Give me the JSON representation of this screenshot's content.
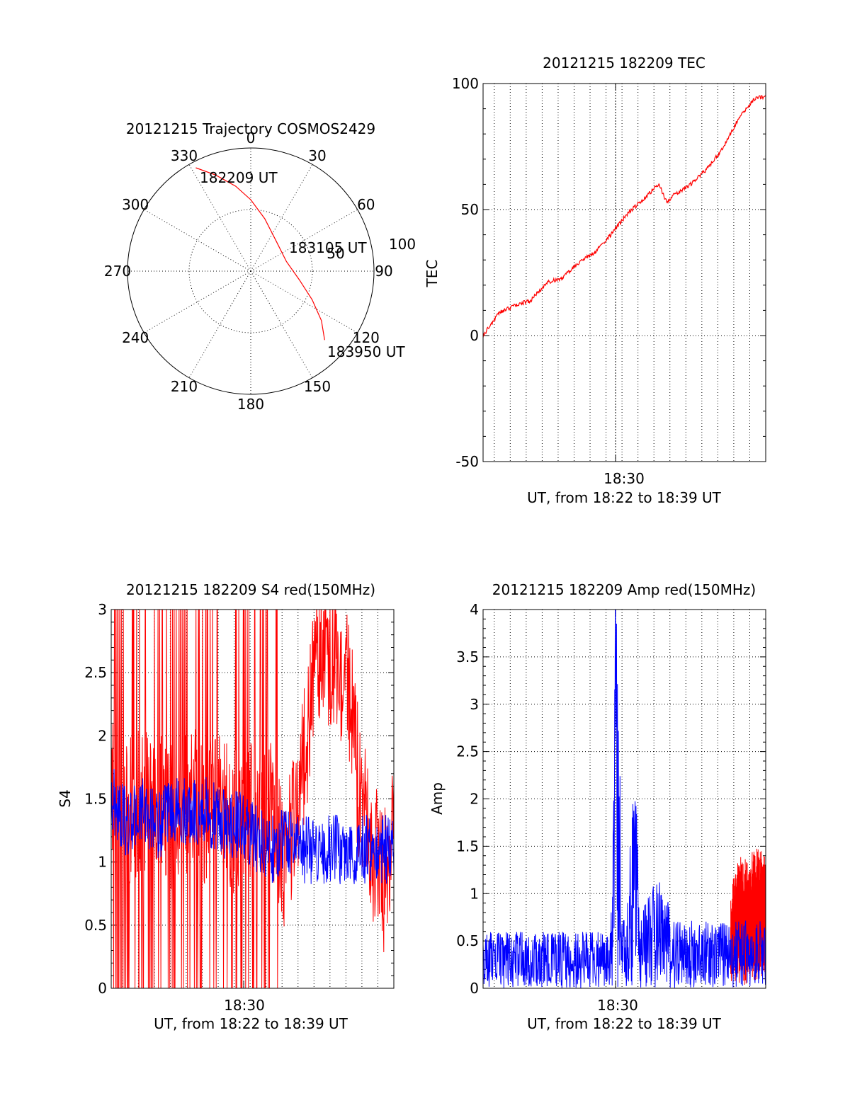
{
  "colors": {
    "red": "#ff0000",
    "blue": "#0000ff",
    "axis": "#000000"
  },
  "chart_data": [
    {
      "id": "trajectory",
      "type": "polar",
      "title": "20121215 Trajectory COSMOS2429",
      "angle_labels": [
        "0",
        "30",
        "60",
        "90",
        "120",
        "150",
        "180",
        "210",
        "240",
        "270",
        "300",
        "330"
      ],
      "radial_labels": [
        "50",
        "100"
      ],
      "rlim": [
        0,
        100
      ],
      "track": [
        {
          "az": 332,
          "r": 95
        },
        {
          "az": 340,
          "r": 83
        },
        {
          "az": 350,
          "r": 70
        },
        {
          "az": 0,
          "r": 58
        },
        {
          "az": 15,
          "r": 44
        },
        {
          "az": 40,
          "r": 32
        },
        {
          "az": 75,
          "r": 30
        },
        {
          "az": 100,
          "r": 40
        },
        {
          "az": 115,
          "r": 55
        },
        {
          "az": 125,
          "r": 70
        },
        {
          "az": 133,
          "r": 82
        }
      ],
      "annotations": [
        {
          "text": "182209 UT",
          "az": 332,
          "r": 95
        },
        {
          "text": "183105 UT",
          "az": 62,
          "r": 88
        },
        {
          "text": "183950 UT",
          "az": 120,
          "r": 110
        }
      ],
      "series_color": "#ff0000"
    },
    {
      "id": "tec",
      "type": "line",
      "title": "20121215 182209 TEC",
      "xlabel": "UT, from 18:22 to 18:39 UT",
      "ylabel": "TEC",
      "x_tick_label": "18:30",
      "xlim": [
        0,
        17.7
      ],
      "ylim": [
        -50,
        100
      ],
      "yticks": [
        -50,
        0,
        50,
        100
      ],
      "series": [
        {
          "color": "#ff0000",
          "x": [
            0,
            1,
            2,
            3,
            4,
            5,
            6,
            7,
            8,
            9,
            10,
            10.5,
            11,
            11.5,
            12,
            13,
            14,
            14.5,
            15,
            16,
            16.5,
            17,
            17.7
          ],
          "values": [
            0,
            9,
            12,
            14,
            21,
            23,
            29,
            33,
            40,
            48,
            54,
            57,
            60,
            53,
            56,
            60,
            66,
            70,
            74,
            86,
            90,
            94,
            95
          ]
        }
      ]
    },
    {
      "id": "s4",
      "type": "line",
      "title": "20121215 182209 S4 red(150MHz)",
      "xlabel": "UT, from 18:22 to 18:39 UT",
      "ylabel": "S4",
      "x_tick_label": "18:30",
      "xlim": [
        0,
        17.7
      ],
      "ylim": [
        0,
        3
      ],
      "yticks": [
        0,
        0.5,
        1,
        1.5,
        2,
        2.5,
        3
      ],
      "series": [
        {
          "color": "#ff0000",
          "x": [
            0,
            1,
            2,
            3,
            4,
            5,
            6,
            7,
            8,
            9,
            10,
            11,
            12,
            13,
            14,
            15,
            15.5,
            16,
            17,
            17.7
          ],
          "values": [
            1.6,
            1.4,
            1.5,
            1.5,
            1.3,
            1.5,
            1.4,
            1.4,
            1.3,
            1.5,
            1.4,
            1.0,
            1.8,
            2.7,
            2.6,
            2.3,
            1.6,
            1.3,
            0.8,
            1.3
          ]
        },
        {
          "color": "#0000ff",
          "x": [
            0,
            1,
            2,
            3,
            4,
            5,
            6,
            7,
            8,
            9,
            10,
            11,
            12,
            13,
            14,
            15,
            16,
            17,
            17.7
          ],
          "values": [
            1.5,
            1.3,
            1.4,
            1.3,
            1.4,
            1.4,
            1.4,
            1.3,
            1.3,
            1.2,
            1.1,
            1.2,
            1.1,
            1.1,
            1.1,
            1.1,
            1.1,
            1.1,
            1.1
          ]
        }
      ]
    },
    {
      "id": "amp",
      "type": "line",
      "title": "20121215 182209 Amp red(150MHz)",
      "xlabel": "UT, from 18:22 to 18:39 UT",
      "ylabel": "Amp",
      "x_tick_label": "18:30",
      "xlim": [
        0,
        17.7
      ],
      "ylim": [
        0,
        4
      ],
      "yticks": [
        0,
        0.5,
        1,
        1.5,
        2,
        2.5,
        3,
        3.5,
        4
      ],
      "series": [
        {
          "color": "#ff0000",
          "x": [
            15.5,
            16,
            16.5,
            17,
            17.7
          ],
          "values": [
            0.6,
            1.0,
            0.9,
            1.0,
            1.0
          ]
        },
        {
          "color": "#0000ff",
          "x": [
            0,
            1,
            2,
            3,
            4,
            5,
            6,
            7,
            8,
            8.3,
            8.5,
            8.7,
            9,
            9.5,
            9.8,
            10,
            11,
            12,
            13,
            14,
            15,
            16,
            17,
            17.7
          ],
          "values": [
            0.5,
            0.5,
            0.5,
            0.5,
            0.5,
            0.5,
            0.5,
            0.5,
            0.5,
            3.8,
            2.7,
            0.6,
            0.6,
            2.3,
            0.6,
            0.7,
            1.0,
            0.6,
            0.6,
            0.6,
            0.6,
            0.6,
            0.6,
            0.6
          ]
        }
      ]
    }
  ]
}
